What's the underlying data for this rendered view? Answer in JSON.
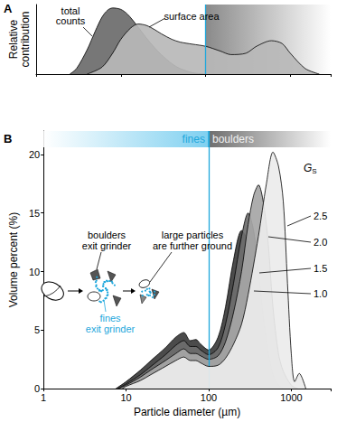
{
  "chart_data": [
    {
      "type": "area",
      "panel_label": "A",
      "ylabel": "Relative contribution",
      "log": "x",
      "tick_labels": false,
      "xlim": [
        1,
        3000
      ],
      "ylim": [
        0,
        1
      ],
      "xticks": [
        1,
        10,
        100,
        1000
      ],
      "vline": 100,
      "series": [
        {
          "name": "total counts",
          "color": "#6b6b6b",
          "x": [
            2.5,
            3,
            4,
            5,
            6,
            7,
            8,
            10,
            12,
            15,
            20,
            25,
            30,
            40,
            50,
            70,
            100
          ],
          "values": [
            0,
            0.08,
            0.35,
            0.62,
            0.82,
            0.92,
            0.95,
            0.93,
            0.86,
            0.72,
            0.52,
            0.38,
            0.28,
            0.15,
            0.08,
            0.02,
            0
          ]
        },
        {
          "name": "surface area",
          "color": "#b8b8b8",
          "x": [
            4,
            6,
            8,
            10,
            13,
            16,
            20,
            25,
            30,
            40,
            50,
            70,
            100,
            150,
            200,
            300,
            400,
            600,
            800,
            1000,
            1500,
            2200
          ],
          "values": [
            0,
            0.1,
            0.3,
            0.5,
            0.66,
            0.72,
            0.7,
            0.64,
            0.58,
            0.5,
            0.46,
            0.43,
            0.4,
            0.33,
            0.28,
            0.3,
            0.4,
            0.48,
            0.44,
            0.3,
            0.08,
            0
          ]
        }
      ]
    },
    {
      "type": "area",
      "panel_label": "B",
      "xlabel": "Particle diameter (µm)",
      "ylabel": "Volume percent (%)",
      "log": "x",
      "xlim": [
        1,
        3000
      ],
      "ylim": [
        0,
        22
      ],
      "xticks": [
        1,
        10,
        100,
        1000
      ],
      "yticks": [
        0,
        5,
        10,
        15,
        20
      ],
      "vline": 100,
      "regions": [
        {
          "label": "fines",
          "from": 1,
          "to": 100
        },
        {
          "label": "boulders",
          "from": 100,
          "to": 3000
        }
      ],
      "legend_title": "GS",
      "annotations": [
        "boulders\nexit grinder",
        "large particles\nare further ground",
        "fines\nexit grinder"
      ],
      "series": [
        {
          "name": "1.0",
          "color": "#3c3c3c",
          "x": [
            7.5,
            10,
            15,
            20,
            30,
            40,
            50,
            60,
            70,
            80,
            100,
            130,
            160,
            200,
            250,
            300,
            350,
            400,
            500,
            600,
            700
          ],
          "values": [
            0,
            0.6,
            1.6,
            2.4,
            3.5,
            4.4,
            4.8,
            4.1,
            4.2,
            3.8,
            3.3,
            4.4,
            7,
            11,
            13.5,
            12.5,
            9,
            6,
            2,
            0.5,
            0
          ]
        },
        {
          "name": "1.5",
          "color": "#6e6e6e",
          "x": [
            8,
            10,
            15,
            20,
            30,
            40,
            50,
            60,
            70,
            80,
            100,
            130,
            160,
            200,
            250,
            300,
            350,
            400,
            500,
            600,
            700,
            800
          ],
          "values": [
            0,
            0.4,
            1.2,
            1.9,
            2.9,
            3.7,
            4.1,
            3.6,
            3.6,
            3.3,
            2.9,
            3.5,
            5.5,
            9,
            13,
            15,
            13.5,
            10,
            4,
            1.2,
            0.3,
            0
          ]
        },
        {
          "name": "2.0",
          "color": "#a6a6a6",
          "x": [
            8,
            10,
            15,
            20,
            30,
            40,
            50,
            60,
            70,
            80,
            100,
            130,
            160,
            200,
            250,
            300,
            350,
            400,
            500,
            600,
            700,
            800,
            1000,
            1200
          ],
          "values": [
            0,
            0.3,
            1,
            1.6,
            2.4,
            3,
            3.4,
            3,
            3,
            2.8,
            2.5,
            2.8,
            4,
            6.5,
            10,
            14,
            16.5,
            17.4,
            14,
            7,
            3,
            1.5,
            0.3,
            0
          ]
        },
        {
          "name": "2.5",
          "color": "#ececec",
          "x": [
            9,
            10,
            15,
            20,
            30,
            40,
            50,
            60,
            70,
            80,
            100,
            130,
            160,
            200,
            250,
            300,
            400,
            500,
            600,
            700,
            800,
            900,
            1000,
            1100,
            1250,
            1500
          ],
          "values": [
            0,
            0.2,
            0.7,
            1.2,
            1.9,
            2.4,
            2.7,
            2.4,
            2.4,
            2.2,
            1.9,
            2,
            2.6,
            3.8,
            5.5,
            8,
            13,
            17.5,
            20.2,
            19,
            16,
            9,
            3,
            0.6,
            1.3,
            0
          ]
        }
      ]
    }
  ]
}
